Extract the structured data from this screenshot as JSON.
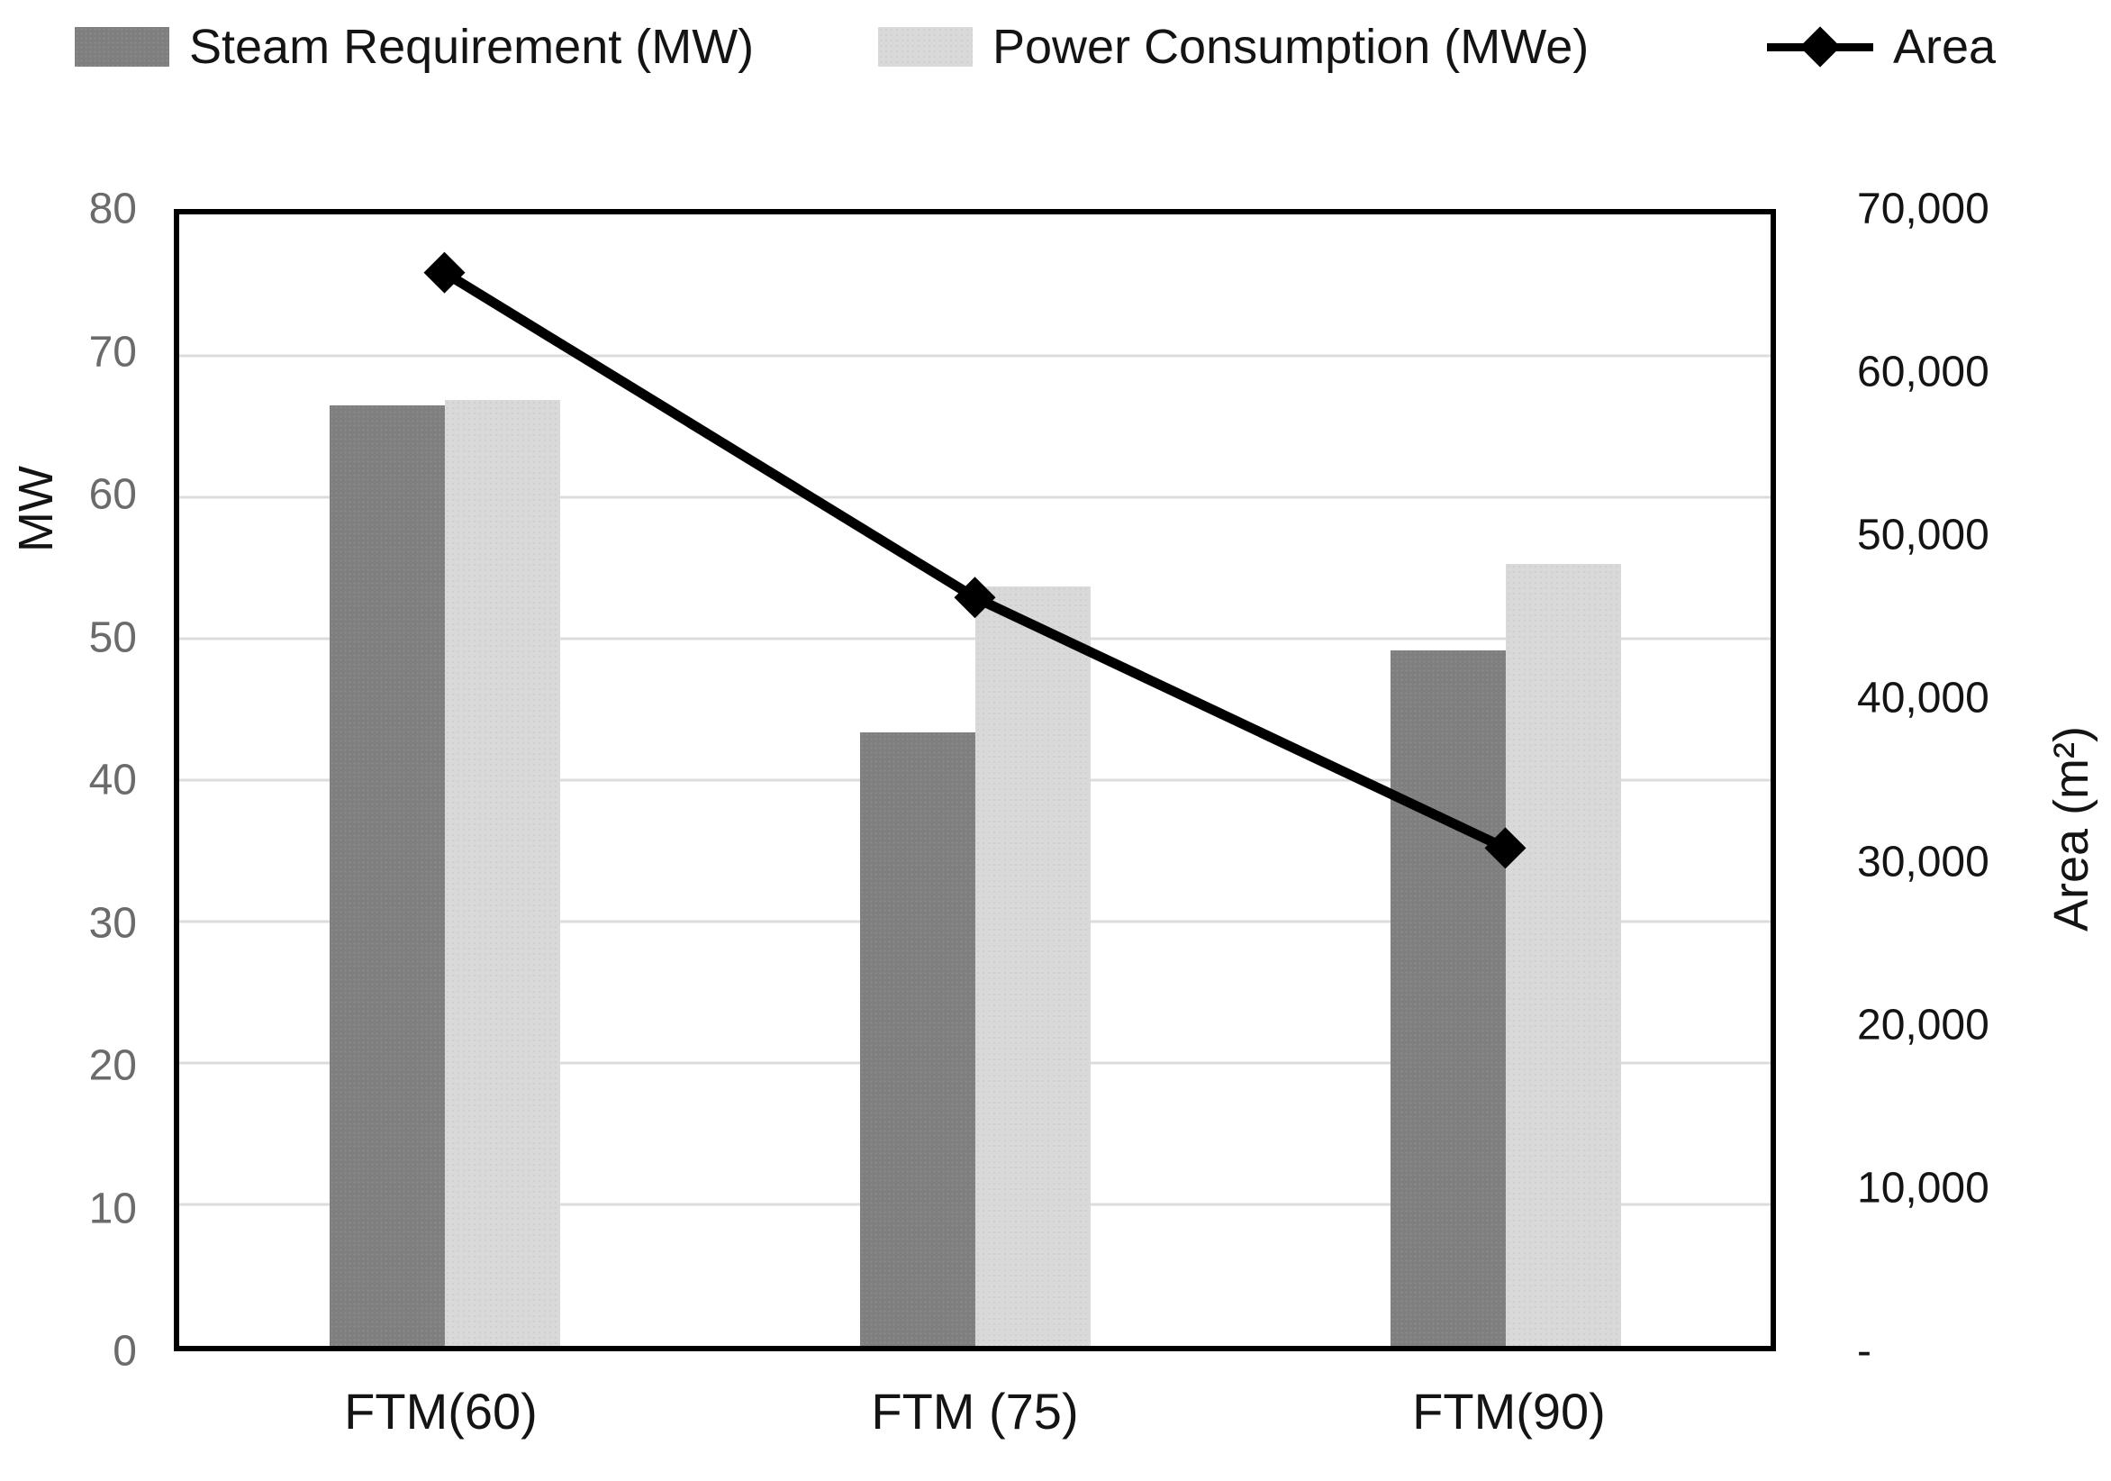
{
  "legend": [
    {
      "label": "Steam Requirement (MW)",
      "swatch": "bar",
      "color": "#7f7f7f"
    },
    {
      "label": "Power Consumption (MWe)",
      "swatch": "bar",
      "color": "#d9d9d9"
    },
    {
      "label": "Area",
      "swatch": "line-diamond",
      "color": "#000000"
    }
  ],
  "left_axis": {
    "title": "MW",
    "min": 0,
    "max": 80,
    "ticks": [
      "80",
      "70",
      "60",
      "50",
      "40",
      "30",
      "20",
      "10",
      "0"
    ]
  },
  "right_axis": {
    "title": "Area (m²)",
    "min": 0,
    "max": 70000,
    "ticks": [
      "70,000",
      "60,000",
      "50,000",
      "40,000",
      "30,000",
      "20,000",
      "10,000",
      "-"
    ]
  },
  "x_axis": {
    "categories": [
      "FTM(60)",
      "FTM (75)",
      "FTM(90)"
    ]
  },
  "chart_data": {
    "type": "bar",
    "subtype": "bar+line-combo",
    "categories": [
      "FTM(60)",
      "FTM (75)",
      "FTM(90)"
    ],
    "series": [
      {
        "name": "Steam Requirement (MW)",
        "type": "bar",
        "axis": "left",
        "color": "#7f7f7f",
        "values": [
          66.5,
          43.4,
          49.2
        ]
      },
      {
        "name": "Power Consumption (MWe)",
        "type": "bar",
        "axis": "left",
        "color": "#d9d9d9",
        "values": [
          66.9,
          53.7,
          55.3
        ]
      },
      {
        "name": "Area",
        "type": "line",
        "axis": "right",
        "color": "#000000",
        "marker": "diamond",
        "values": [
          66400,
          46300,
          30800
        ]
      }
    ],
    "title": "",
    "xlabel": "",
    "ylabel_left": "MW",
    "ylabel_right": "Area (m²)",
    "left_ylim": [
      0,
      80
    ],
    "right_ylim": [
      0,
      70000
    ],
    "gridlines": "horizontal-major",
    "legend_position": "top"
  },
  "colors": {
    "steam_bar": "#7f7f7f",
    "power_bar": "#d9d9d9",
    "area_line": "#000000",
    "gridline": "#dcdcdc",
    "plot_border": "#000000",
    "left_tick_text": "#6b6b6b",
    "text": "#141414"
  }
}
